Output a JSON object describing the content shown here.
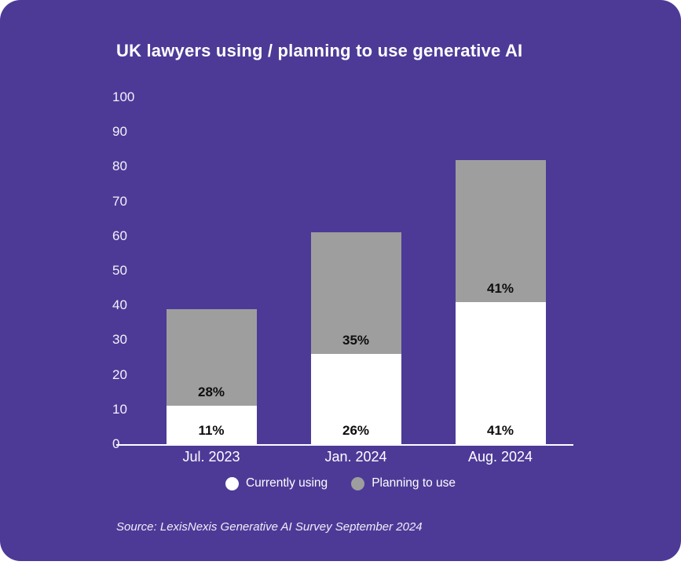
{
  "page": {
    "card_color": "#4d3a97",
    "background_color": "#ffffff"
  },
  "header": {
    "title": "UK lawyers using / planning to use generative AI"
  },
  "footer": {
    "source": "Source: LexisNexis Generative AI Survey September 2024"
  },
  "legend": {
    "position": "bottom-center",
    "items": [
      {
        "label": "Currently using",
        "color": "#ffffff"
      },
      {
        "label": "Planning to use",
        "color": "#9e9e9e"
      }
    ]
  },
  "chart_data": {
    "type": "bar",
    "stacked": true,
    "title": "UK lawyers using / planning to use generative AI",
    "categories": [
      "Jul. 2023",
      "Jan. 2024",
      "Aug. 2024"
    ],
    "series": [
      {
        "name": "Currently using",
        "color": "#ffffff",
        "values": [
          11,
          26,
          41
        ],
        "data_labels": [
          "11%",
          "26%",
          "41%"
        ],
        "label_color": "#0e0e0e"
      },
      {
        "name": "Planning to use",
        "color": "#9e9e9e",
        "values": [
          28,
          35,
          41
        ],
        "data_labels": [
          "28%",
          "35%",
          "41%"
        ],
        "label_color": "#0e0e0e"
      }
    ],
    "totals": [
      39,
      61,
      82
    ],
    "xlabel": "",
    "ylabel": "",
    "ylim": [
      0,
      100
    ],
    "yticks": [
      0,
      10,
      20,
      30,
      40,
      50,
      60,
      70,
      80,
      90,
      100
    ],
    "grid": false,
    "axis_line_color": "#ffffff",
    "tick_label_color": "#f3f1fa",
    "legend_position": "bottom"
  }
}
